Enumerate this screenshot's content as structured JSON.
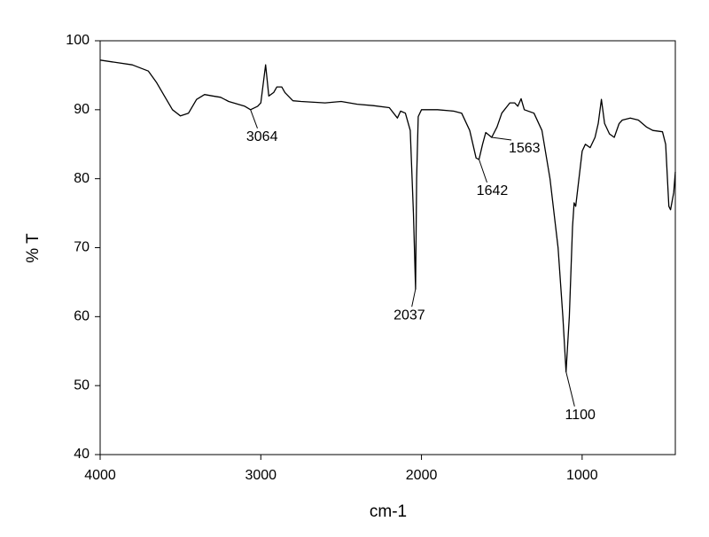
{
  "chart_data": {
    "type": "line",
    "x_label": "cm-1",
    "y_label": "% T",
    "xlim": [
      4000,
      420
    ],
    "ylim": [
      40,
      100
    ],
    "xticks": [
      4000,
      3000,
      2000,
      1000
    ],
    "yticks": [
      40,
      50,
      60,
      70,
      80,
      90,
      100
    ],
    "series": [
      {
        "color": "#000000",
        "x": [
          4000,
          3800,
          3700,
          3650,
          3600,
          3550,
          3500,
          3450,
          3400,
          3350,
          3300,
          3250,
          3200,
          3100,
          3064,
          3020,
          3000,
          2970,
          2950,
          2920,
          2900,
          2870,
          2850,
          2800,
          2750,
          2600,
          2500,
          2400,
          2300,
          2200,
          2150,
          2130,
          2100,
          2070,
          2050,
          2037,
          2030,
          2020,
          2000,
          1900,
          1800,
          1750,
          1700,
          1660,
          1642,
          1620,
          1600,
          1563,
          1530,
          1500,
          1450,
          1420,
          1400,
          1380,
          1360,
          1300,
          1250,
          1200,
          1150,
          1120,
          1100,
          1080,
          1060,
          1050,
          1040,
          1000,
          980,
          950,
          920,
          900,
          880,
          860,
          830,
          800,
          770,
          750,
          700,
          650,
          600,
          560,
          500,
          480,
          460,
          450,
          430,
          420
        ],
        "values": [
          97.2,
          96.5,
          95.6,
          94,
          92,
          90,
          89.1,
          89.5,
          91.5,
          92.2,
          92,
          91.8,
          91.2,
          90.5,
          90,
          90.5,
          91,
          96.5,
          92,
          92.5,
          93.3,
          93.3,
          92.5,
          91.3,
          91.2,
          91.0,
          91.2,
          90.8,
          90.6,
          90.3,
          88.8,
          89.8,
          89.5,
          87,
          75,
          64,
          80,
          89,
          90,
          90,
          89.8,
          89.5,
          87,
          83,
          82.8,
          85,
          86.7,
          86,
          87.5,
          89.5,
          91,
          91,
          90.5,
          91.6,
          90,
          89.5,
          87,
          80,
          70,
          60,
          52,
          60,
          73,
          76.5,
          76,
          84,
          85,
          84.5,
          86,
          88,
          91.5,
          88,
          86.5,
          86,
          88,
          88.5,
          88.8,
          88.5,
          87.5,
          87,
          86.8,
          85,
          76,
          75.5,
          78,
          81
        ]
      }
    ],
    "annotations": [
      {
        "x": 3064,
        "y": 90
      },
      {
        "x": 2037,
        "y": 64
      },
      {
        "x": 1642,
        "y": 82.8
      },
      {
        "x": 1563,
        "y": 86
      },
      {
        "x": 1100,
        "y": 52
      }
    ]
  }
}
